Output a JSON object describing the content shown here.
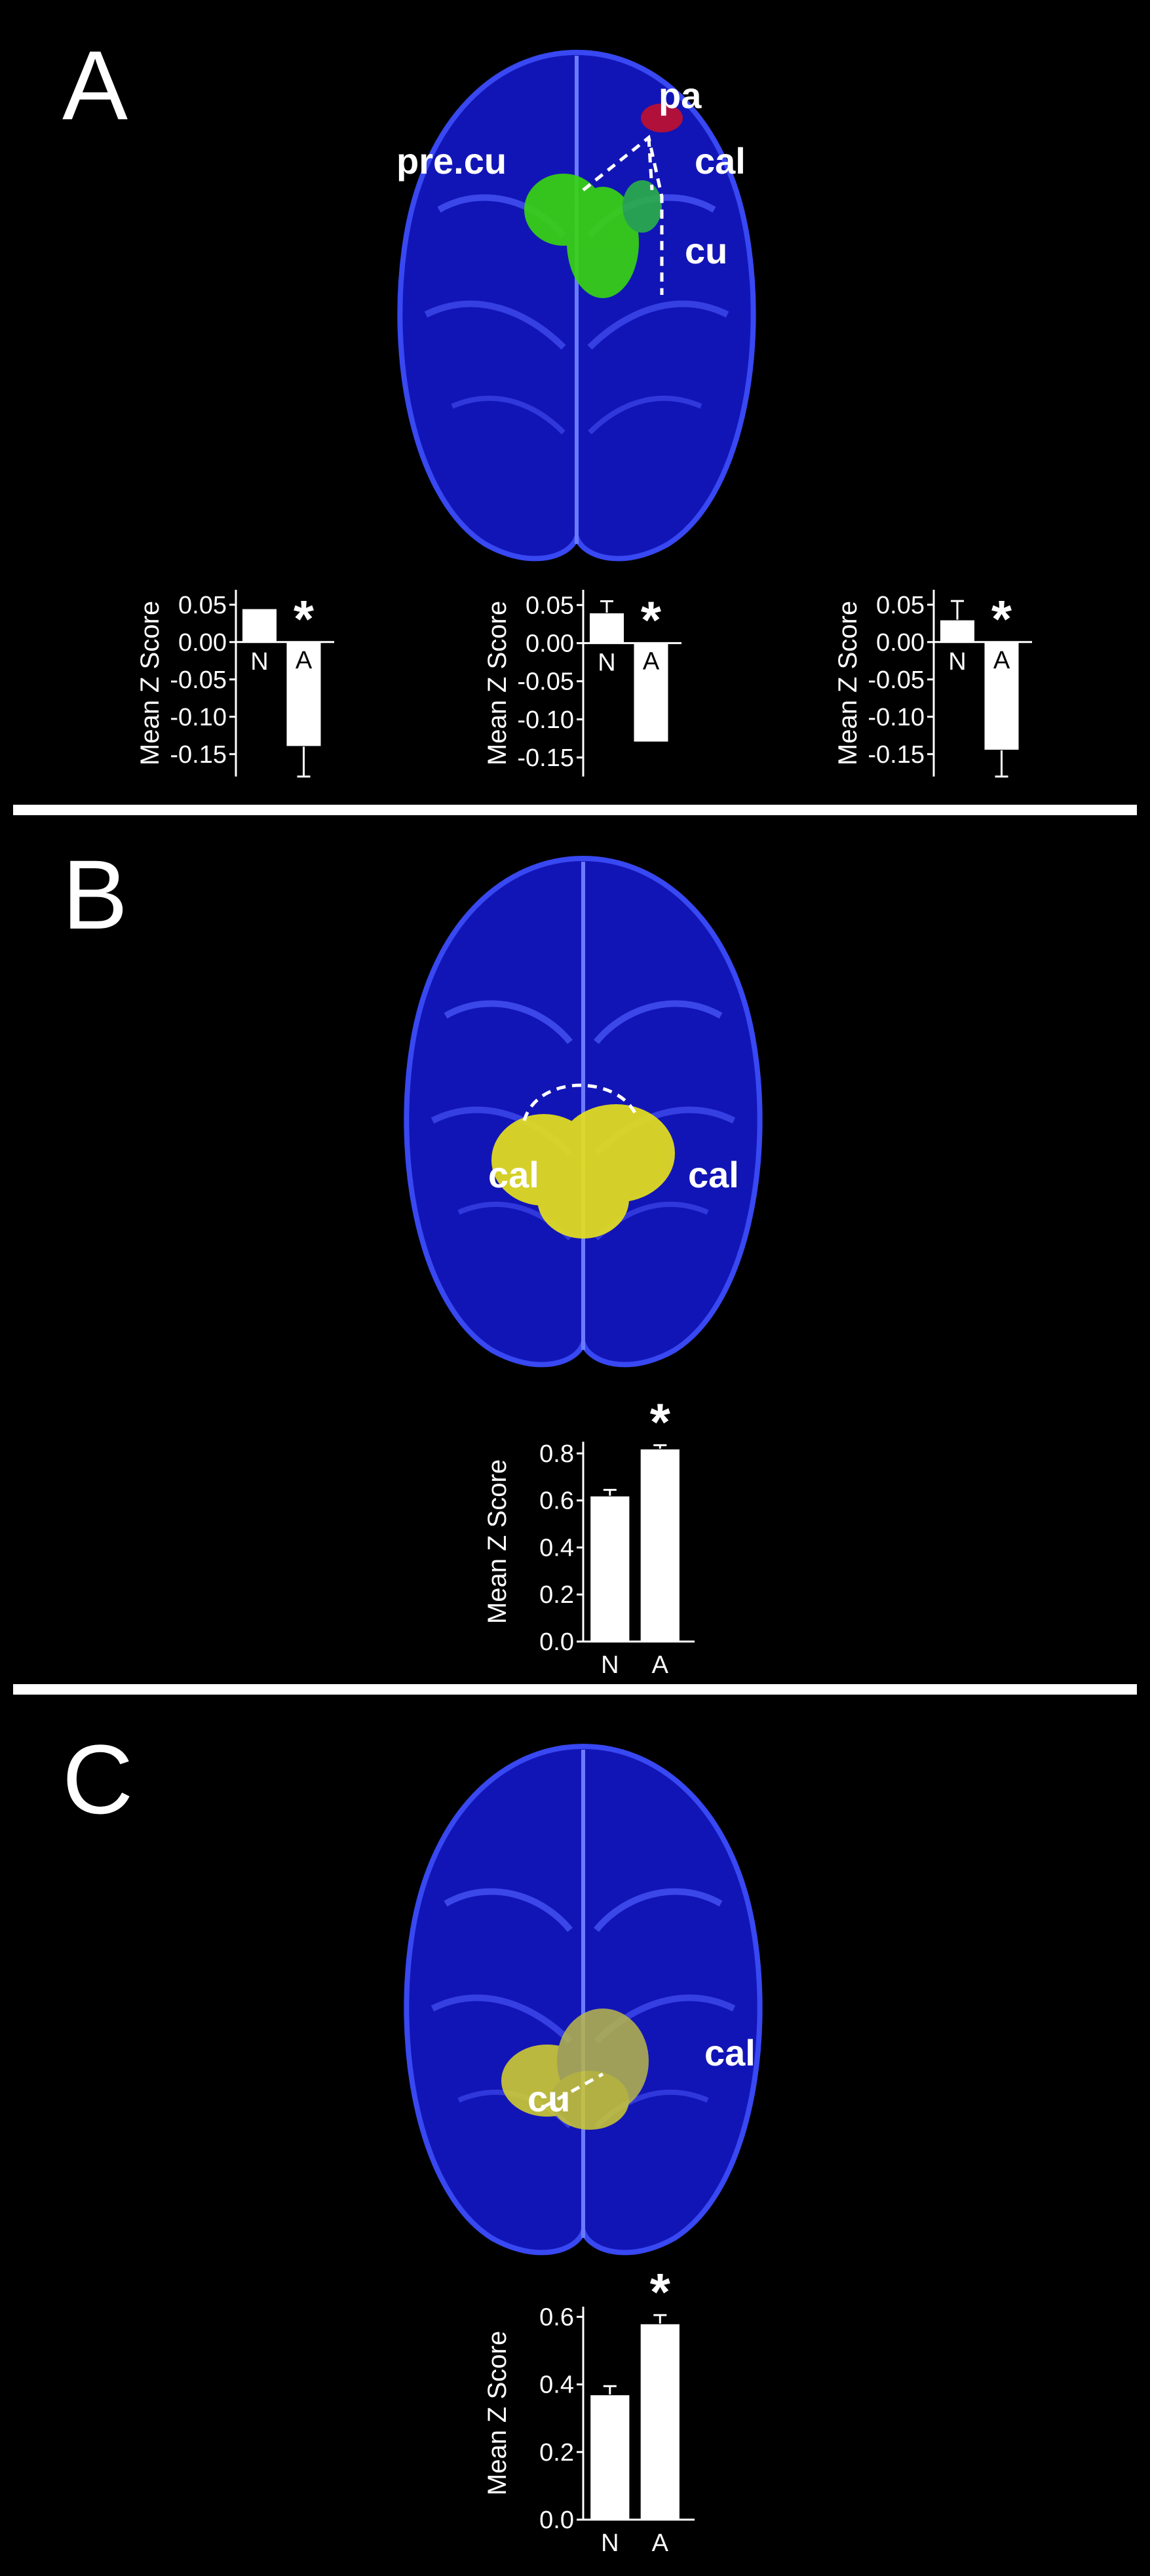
{
  "colors": {
    "background": "#000000",
    "brain": "#1a1fd6",
    "green": "#39d60e",
    "yellow": "#e5e01e",
    "red": "#b0103a"
  },
  "panels": [
    {
      "letter": "A",
      "labels": {
        "pa": "pa",
        "precu": "pre.cu",
        "cal": "cal",
        "cu": "cu"
      }
    },
    {
      "letter": "B",
      "labels": {
        "cal_left": "cal",
        "cal_right": "cal"
      }
    },
    {
      "letter": "C",
      "labels": {
        "cu": "cu",
        "cal": "cal"
      }
    }
  ],
  "chart_data": [
    {
      "type": "bar",
      "panel": "A",
      "ylabel": "Mean Z Score",
      "ylim": [
        -0.18,
        0.07
      ],
      "yticks": [
        "0.05",
        "0.00",
        "-0.05",
        "-0.10",
        "-0.15"
      ],
      "categories": [
        "N",
        "A"
      ],
      "values": [
        0.045,
        -0.14
      ],
      "errors": [
        0.0,
        0.04
      ],
      "significance": "*"
    },
    {
      "type": "bar",
      "panel": "A",
      "ylabel": "Mean Z Score",
      "ylim": [
        -0.175,
        0.07
      ],
      "yticks": [
        "0.05",
        "0.00",
        "-0.05",
        "-0.10",
        "-0.15"
      ],
      "categories": [
        "N",
        "A"
      ],
      "values": [
        0.04,
        -0.13
      ],
      "errors": [
        0.015,
        0.0
      ],
      "significance": "*"
    },
    {
      "type": "bar",
      "panel": "A",
      "ylabel": "Mean Z Score",
      "ylim": [
        -0.18,
        0.07
      ],
      "yticks": [
        "0.05",
        "0.00",
        "-0.05",
        "-0.10",
        "-0.15"
      ],
      "categories": [
        "N",
        "A"
      ],
      "values": [
        0.03,
        -0.145
      ],
      "errors": [
        0.025,
        0.035
      ],
      "significance": "*"
    },
    {
      "type": "bar",
      "panel": "B",
      "ylabel": "Mean Z Score",
      "ylim": [
        0,
        0.85
      ],
      "yticks": [
        "0.0",
        "0.2",
        "0.4",
        "0.6",
        "0.8"
      ],
      "categories": [
        "N",
        "A"
      ],
      "values": [
        0.62,
        0.82
      ],
      "errors": [
        0.025,
        0.015
      ],
      "significance": "*"
    },
    {
      "type": "bar",
      "panel": "C",
      "ylabel": "Mean Z Score",
      "ylim": [
        0,
        0.63
      ],
      "yticks": [
        "0.0",
        "0.2",
        "0.4",
        "0.6"
      ],
      "categories": [
        "N",
        "A"
      ],
      "values": [
        0.37,
        0.58
      ],
      "errors": [
        0.025,
        0.025
      ],
      "significance": "*"
    }
  ]
}
